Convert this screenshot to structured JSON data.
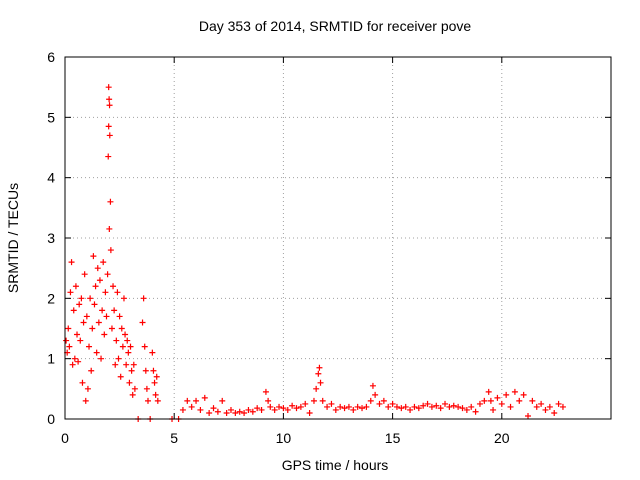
{
  "chart_data": {
    "type": "scatter",
    "title": "Day 353 of 2014, SRMTID for receiver pove",
    "xlabel": "GPS time / hours",
    "ylabel": "SRMTID / TECUs",
    "xlim": [
      0,
      25
    ],
    "ylim": [
      0,
      6
    ],
    "x_ticks": [
      0,
      5,
      10,
      15,
      20
    ],
    "y_ticks": [
      0,
      1,
      2,
      3,
      4,
      5,
      6
    ],
    "grid": true,
    "marker": "+",
    "series_color": "#ff0000",
    "series": [
      {
        "name": "pove",
        "points": [
          [
            0.05,
            1.3
          ],
          [
            0.1,
            1.1
          ],
          [
            0.15,
            1.5
          ],
          [
            0.2,
            1.2
          ],
          [
            0.25,
            2.1
          ],
          [
            0.3,
            2.6
          ],
          [
            0.35,
            0.9
          ],
          [
            0.4,
            1.8
          ],
          [
            0.45,
            1.0
          ],
          [
            0.5,
            2.2
          ],
          [
            0.55,
            1.4
          ],
          [
            0.6,
            0.95
          ],
          [
            0.65,
            1.9
          ],
          [
            0.7,
            1.3
          ],
          [
            0.75,
            2.0
          ],
          [
            0.8,
            0.6
          ],
          [
            0.85,
            1.6
          ],
          [
            0.9,
            2.4
          ],
          [
            0.95,
            0.3
          ],
          [
            1.0,
            1.7
          ],
          [
            1.05,
            0.5
          ],
          [
            1.1,
            1.2
          ],
          [
            1.15,
            2.0
          ],
          [
            1.2,
            0.8
          ],
          [
            1.25,
            1.5
          ],
          [
            1.3,
            2.7
          ],
          [
            1.35,
            1.9
          ],
          [
            1.4,
            2.2
          ],
          [
            1.45,
            1.1
          ],
          [
            1.5,
            2.5
          ],
          [
            1.55,
            1.6
          ],
          [
            1.6,
            2.3
          ],
          [
            1.65,
            1.0
          ],
          [
            1.7,
            1.8
          ],
          [
            1.75,
            2.6
          ],
          [
            1.8,
            1.4
          ],
          [
            1.85,
            2.1
          ],
          [
            1.9,
            1.7
          ],
          [
            1.95,
            2.4
          ],
          [
            2.0,
            5.5
          ],
          [
            2.02,
            5.3
          ],
          [
            2.04,
            5.2
          ],
          [
            2.0,
            4.85
          ],
          [
            2.05,
            4.7
          ],
          [
            1.98,
            4.35
          ],
          [
            2.08,
            3.6
          ],
          [
            2.03,
            3.15
          ],
          [
            2.1,
            2.8
          ],
          [
            2.15,
            1.5
          ],
          [
            2.2,
            2.2
          ],
          [
            2.25,
            1.8
          ],
          [
            2.3,
            0.9
          ],
          [
            2.35,
            1.3
          ],
          [
            2.4,
            2.1
          ],
          [
            2.45,
            1.0
          ],
          [
            2.5,
            1.7
          ],
          [
            2.55,
            0.7
          ],
          [
            2.6,
            1.5
          ],
          [
            2.65,
            1.2
          ],
          [
            2.7,
            2.0
          ],
          [
            2.75,
            1.4
          ],
          [
            2.8,
            0.9
          ],
          [
            2.85,
            1.3
          ],
          [
            2.9,
            1.1
          ],
          [
            2.95,
            0.6
          ],
          [
            3.0,
            1.2
          ],
          [
            3.05,
            0.8
          ],
          [
            3.1,
            0.4
          ],
          [
            3.15,
            0.9
          ],
          [
            3.2,
            0.5
          ],
          [
            3.35,
            0.0
          ],
          [
            3.55,
            1.6
          ],
          [
            3.6,
            2.0
          ],
          [
            3.65,
            1.2
          ],
          [
            3.7,
            0.8
          ],
          [
            3.75,
            0.5
          ],
          [
            3.8,
            0.3
          ],
          [
            3.9,
            0.0
          ],
          [
            4.0,
            1.1
          ],
          [
            4.05,
            0.8
          ],
          [
            4.1,
            0.6
          ],
          [
            4.15,
            0.4
          ],
          [
            4.2,
            0.7
          ],
          [
            4.25,
            0.3
          ],
          [
            4.9,
            0.0
          ],
          [
            5.2,
            0.0
          ],
          [
            5.4,
            0.15
          ],
          [
            5.6,
            0.3
          ],
          [
            5.8,
            0.2
          ],
          [
            6.0,
            0.3
          ],
          [
            6.2,
            0.15
          ],
          [
            6.4,
            0.35
          ],
          [
            6.6,
            0.1
          ],
          [
            6.8,
            0.18
          ],
          [
            7.0,
            0.12
          ],
          [
            7.2,
            0.3
          ],
          [
            7.4,
            0.1
          ],
          [
            7.6,
            0.15
          ],
          [
            7.8,
            0.1
          ],
          [
            8.0,
            0.12
          ],
          [
            8.2,
            0.1
          ],
          [
            8.4,
            0.15
          ],
          [
            8.6,
            0.12
          ],
          [
            8.8,
            0.18
          ],
          [
            9.0,
            0.15
          ],
          [
            9.2,
            0.45
          ],
          [
            9.3,
            0.3
          ],
          [
            9.4,
            0.2
          ],
          [
            9.6,
            0.15
          ],
          [
            9.8,
            0.2
          ],
          [
            10.0,
            0.18
          ],
          [
            10.2,
            0.15
          ],
          [
            10.4,
            0.22
          ],
          [
            10.6,
            0.18
          ],
          [
            10.8,
            0.2
          ],
          [
            11.0,
            0.25
          ],
          [
            11.2,
            0.1
          ],
          [
            11.4,
            0.3
          ],
          [
            11.5,
            0.5
          ],
          [
            11.6,
            0.75
          ],
          [
            11.65,
            0.85
          ],
          [
            11.7,
            0.6
          ],
          [
            11.8,
            0.3
          ],
          [
            12.0,
            0.2
          ],
          [
            12.2,
            0.25
          ],
          [
            12.4,
            0.15
          ],
          [
            12.6,
            0.2
          ],
          [
            12.8,
            0.18
          ],
          [
            13.0,
            0.2
          ],
          [
            13.2,
            0.15
          ],
          [
            13.4,
            0.2
          ],
          [
            13.6,
            0.18
          ],
          [
            13.8,
            0.2
          ],
          [
            14.0,
            0.3
          ],
          [
            14.1,
            0.55
          ],
          [
            14.2,
            0.4
          ],
          [
            14.4,
            0.25
          ],
          [
            14.6,
            0.3
          ],
          [
            14.8,
            0.2
          ],
          [
            15.0,
            0.25
          ],
          [
            15.2,
            0.2
          ],
          [
            15.4,
            0.18
          ],
          [
            15.6,
            0.2
          ],
          [
            15.8,
            0.15
          ],
          [
            16.0,
            0.2
          ],
          [
            16.2,
            0.18
          ],
          [
            16.4,
            0.22
          ],
          [
            16.6,
            0.25
          ],
          [
            16.8,
            0.2
          ],
          [
            17.0,
            0.22
          ],
          [
            17.2,
            0.18
          ],
          [
            17.4,
            0.25
          ],
          [
            17.6,
            0.2
          ],
          [
            17.8,
            0.22
          ],
          [
            18.0,
            0.2
          ],
          [
            18.2,
            0.18
          ],
          [
            18.4,
            0.15
          ],
          [
            18.6,
            0.2
          ],
          [
            18.8,
            0.12
          ],
          [
            19.0,
            0.25
          ],
          [
            19.2,
            0.3
          ],
          [
            19.4,
            0.45
          ],
          [
            19.5,
            0.3
          ],
          [
            19.6,
            0.15
          ],
          [
            19.8,
            0.35
          ],
          [
            20.0,
            0.25
          ],
          [
            20.2,
            0.4
          ],
          [
            20.4,
            0.2
          ],
          [
            20.6,
            0.45
          ],
          [
            20.8,
            0.3
          ],
          [
            21.0,
            0.4
          ],
          [
            21.2,
            0.05
          ],
          [
            21.4,
            0.3
          ],
          [
            21.6,
            0.2
          ],
          [
            21.8,
            0.25
          ],
          [
            22.0,
            0.15
          ],
          [
            22.2,
            0.2
          ],
          [
            22.4,
            0.1
          ],
          [
            22.6,
            0.25
          ],
          [
            22.8,
            0.2
          ]
        ]
      }
    ]
  }
}
